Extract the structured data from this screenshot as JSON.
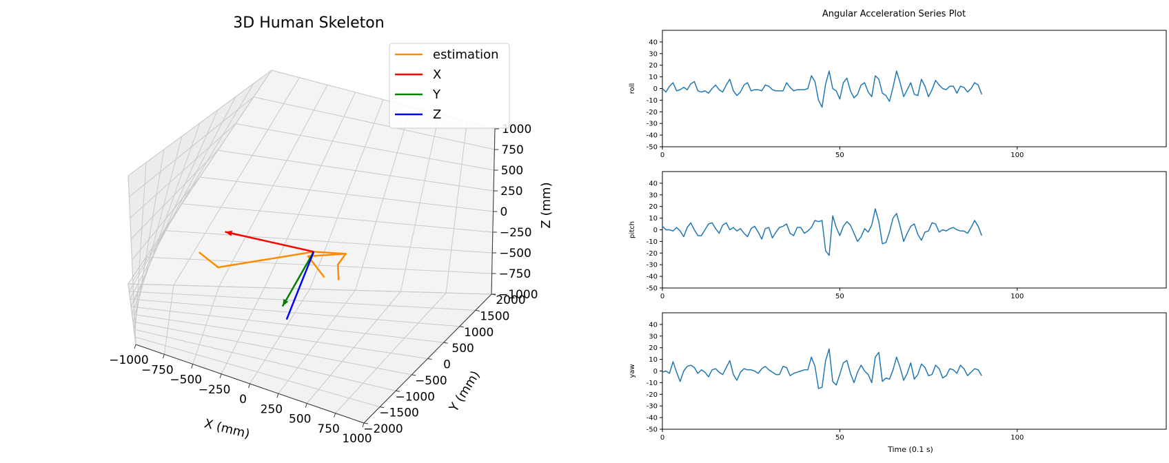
{
  "figure_left": {
    "title": "3D Human Skeleton",
    "legend": [
      "estimation",
      "X",
      "Y",
      "Z"
    ],
    "xlabel": "X (mm)",
    "ylabel": "Y (mm)",
    "zlabel": "Z (mm)",
    "x_ticks": [
      "−1000",
      "−750",
      "−500",
      "−250",
      "0",
      "250",
      "500",
      "750",
      "1000"
    ],
    "y_ticks": [
      "−2000",
      "−1500",
      "−1000",
      "−500",
      "0",
      "500",
      "1000",
      "1500",
      "2000"
    ],
    "z_ticks": [
      "−1000",
      "−750",
      "−500",
      "−250",
      "0",
      "250",
      "500",
      "750",
      "1000"
    ]
  },
  "figure_right": {
    "title": "Angular Acceleration Series Plot",
    "xlabel": "Time (0.1 s)",
    "panel_ylabels": [
      "roll",
      "pitch",
      "yaw"
    ]
  },
  "colors": {
    "estimation": "#ff8c00",
    "X": "#ff0000",
    "Y": "#008000",
    "Z": "#0000ff",
    "series": "#1f77b4"
  },
  "chart_data": [
    {
      "type": "scatter",
      "title": "3D Human Skeleton",
      "xlabel": "X (mm)",
      "ylabel": "Y (mm)",
      "zlabel": "Z (mm)",
      "xlim": [
        -1000,
        1000
      ],
      "ylim": [
        -2000,
        2000
      ],
      "zlim": [
        -1000,
        1000
      ],
      "legend": [
        "estimation",
        "X",
        "Y",
        "Z"
      ],
      "legend_position": "top-right",
      "grid": true,
      "origin": [
        0,
        0,
        0
      ],
      "axes_vectors": [
        {
          "name": "X",
          "to": [
            -600,
            0,
            0
          ]
        },
        {
          "name": "Y",
          "to": [
            0,
            -1900,
            0
          ]
        },
        {
          "name": "Z",
          "to": [
            0,
            0,
            -800
          ]
        }
      ],
      "estimation_segments": [
        [
          [
            0,
            0,
            0
          ],
          [
            -500,
            -1300,
            0
          ]
        ],
        [
          [
            -500,
            -1300,
            0
          ],
          [
            -620,
            -1500,
            170
          ]
        ],
        [
          [
            0,
            0,
            0
          ],
          [
            200,
            150,
            0
          ]
        ],
        [
          [
            200,
            150,
            0
          ],
          [
            180,
            100,
            -120
          ]
        ],
        [
          [
            180,
            100,
            -120
          ],
          [
            220,
            150,
            -300
          ]
        ],
        [
          [
            200,
            150,
            0
          ],
          [
            -30,
            200,
            -130
          ]
        ],
        [
          [
            -30,
            200,
            -130
          ],
          [
            120,
            200,
            -320
          ]
        ]
      ]
    },
    {
      "type": "line",
      "title": "Angular Acceleration Series Plot",
      "xlabel": "Time (0.1 s)",
      "ylabel": "roll",
      "xlim": [
        0,
        142
      ],
      "ylim": [
        -50,
        50
      ],
      "x_ticks": [
        0,
        50,
        100
      ],
      "y_ticks": [
        -50,
        -40,
        -30,
        -20,
        -10,
        0,
        10,
        20,
        30,
        40
      ],
      "x_start": 0,
      "values": [
        0,
        -3,
        2,
        5,
        -2,
        -1,
        1,
        -1,
        4,
        6,
        -2,
        -3,
        -2,
        -4,
        0,
        3,
        -1,
        -3,
        3,
        8,
        -2,
        -6,
        -3,
        3,
        5,
        -2,
        -1,
        -1,
        -2,
        3,
        2,
        -1,
        -2,
        -2,
        -2,
        5,
        1,
        -2,
        -1,
        -1,
        -1,
        0,
        11,
        6,
        -10,
        -16,
        4,
        15,
        0,
        -2,
        -9,
        5,
        9,
        -2,
        -8,
        -5,
        3,
        5,
        -3,
        -7,
        11,
        8,
        -4,
        -6,
        -11,
        1,
        15,
        5,
        -7,
        -1,
        5,
        -5,
        -6,
        8,
        2,
        -7,
        -1,
        7,
        3,
        0,
        -1,
        2,
        2,
        -4,
        2,
        1,
        -3,
        0,
        5,
        3,
        -5
      ]
    },
    {
      "type": "line",
      "title": "",
      "xlabel": "",
      "ylabel": "pitch",
      "xlim": [
        0,
        142
      ],
      "ylim": [
        -50,
        50
      ],
      "x_ticks": [
        0,
        50,
        100
      ],
      "y_ticks": [
        -50,
        -40,
        -30,
        -20,
        -10,
        0,
        10,
        20,
        30,
        40
      ],
      "x_start": 0,
      "values": [
        3,
        0,
        0,
        -1,
        2,
        -1,
        -6,
        2,
        6,
        0,
        -5,
        -5,
        0,
        5,
        6,
        1,
        -3,
        4,
        6,
        0,
        2,
        -1,
        1,
        -3,
        -6,
        1,
        3,
        -2,
        -8,
        1,
        2,
        -7,
        -2,
        2,
        3,
        5,
        -3,
        -5,
        2,
        2,
        -3,
        -1,
        2,
        8,
        7,
        8,
        -18,
        -22,
        12,
        2,
        -5,
        3,
        7,
        4,
        -3,
        -10,
        -6,
        1,
        -2,
        4,
        18,
        7,
        -12,
        -11,
        -2,
        10,
        14,
        3,
        -10,
        -3,
        3,
        5,
        -4,
        -9,
        -2,
        -1,
        6,
        5,
        -2,
        0,
        -1,
        1,
        2,
        0,
        -1,
        -1,
        -3,
        2,
        8,
        3,
        -5
      ]
    },
    {
      "type": "line",
      "title": "",
      "xlabel": "Time (0.1 s)",
      "ylabel": "yaw",
      "xlim": [
        0,
        142
      ],
      "ylim": [
        -50,
        50
      ],
      "x_ticks": [
        0,
        50,
        100
      ],
      "y_ticks": [
        -50,
        -40,
        -30,
        -20,
        -10,
        0,
        10,
        20,
        30,
        40
      ],
      "x_start": 0,
      "values": [
        -1,
        0,
        -2,
        8,
        -1,
        -9,
        0,
        4,
        5,
        3,
        -2,
        1,
        -1,
        -5,
        1,
        2,
        -1,
        -3,
        3,
        9,
        -3,
        -8,
        -1,
        2,
        1,
        1,
        0,
        -2,
        2,
        4,
        1,
        -1,
        -3,
        -3,
        4,
        3,
        -4,
        -2,
        -1,
        0,
        1,
        1,
        12,
        4,
        -15,
        -14,
        9,
        19,
        -9,
        -12,
        -3,
        7,
        9,
        -2,
        -10,
        -1,
        5,
        0,
        -3,
        -10,
        12,
        16,
        -9,
        -6,
        -7,
        1,
        12,
        3,
        -8,
        -2,
        7,
        -7,
        -3,
        6,
        3,
        -4,
        -3,
        5,
        2,
        -6,
        -4,
        2,
        1,
        -2,
        5,
        2,
        -4,
        -1,
        2,
        1,
        -4
      ]
    }
  ]
}
